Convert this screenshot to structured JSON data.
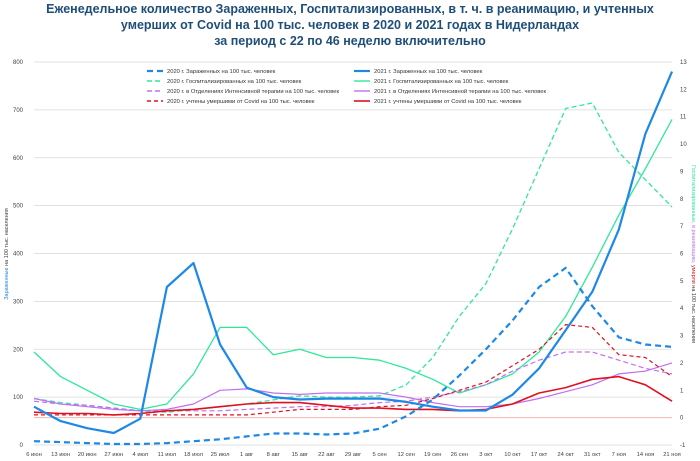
{
  "title_lines": [
    "Еженедельное количество Зараженных, Госпитализированных, в т. ч. в реанимацию, и учтенных",
    "умерших от Covid на 100 тыс. человек в 2020 и 2021 годах в Нидерландах",
    "за период с 22 по 46 неделю включительно"
  ],
  "colors": {
    "title": "#1f4e79",
    "blue": "#1e88e5",
    "green": "#2ee89a",
    "purple": "#c070ee",
    "red": "#e01020",
    "grid": "#d9d9d9",
    "axis_text": "#404040",
    "zero_line": "#f4b6b0"
  },
  "chart_data": {
    "type": "line",
    "title": "Еженедельное количество Зараженных, Госпитализированных, в т. ч. в реанимацию, и учтенных умерших от Covid на 100 тыс. человек в 2020 и 2021 годах в Нидерландах за период с 22 по 46 неделю включительно",
    "categories": [
      "6 июн",
      "13 июн",
      "20 июн",
      "27 июн",
      "4 июл",
      "11 июл",
      "18 июл",
      "25 июл",
      "1 авг",
      "8 авг",
      "15 авг",
      "22 авг",
      "29 авг",
      "5 сен",
      "12 сен",
      "19 сен",
      "26 сен",
      "3 окт",
      "10 окт",
      "17 окт",
      "24 окт",
      "31 окт",
      "7 ноя",
      "14 ноя",
      "21 ноя"
    ],
    "y_left": {
      "label_parts": [
        {
          "text": "Зараженные",
          "color": "#1e88e5"
        },
        {
          "text": " на 100 тыс. населения",
          "color": "#404040"
        }
      ],
      "range": [
        0,
        800
      ],
      "ticks": [
        "0",
        "100",
        "200",
        "300",
        "400",
        "500",
        "600",
        "700",
        "800"
      ]
    },
    "y_right": {
      "label_parts": [
        {
          "text": "Госпитализированные",
          "color": "#2ee89a"
        },
        {
          "text": ", в реанимацию, ",
          "color": "#c070ee"
        },
        {
          "text": "умерли",
          "color": "#e01020"
        },
        {
          "text": " на 100 тыс. населения",
          "color": "#404040"
        }
      ],
      "range": [
        -1,
        13
      ],
      "ticks": [
        "-1",
        "0",
        "1",
        "2",
        "3",
        "4",
        "5",
        "6",
        "7",
        "8",
        "9",
        "10",
        "11",
        "12",
        "13"
      ]
    },
    "legend_position": "top-right",
    "grid": "horizontal",
    "series": [
      {
        "name": "2020 г. Зараженных на 100 тыс. человек",
        "axis": "left",
        "color": "#1e88e5",
        "dash": "6,4",
        "width": 2.2,
        "values": [
          8,
          6,
          4,
          2,
          2,
          4,
          8,
          12,
          18,
          24,
          24,
          22,
          24,
          34,
          60,
          95,
          145,
          200,
          260,
          330,
          370,
          290,
          225,
          210,
          205
        ]
      },
      {
        "name": "2021 г. Зараженных на 100 тыс. человек",
        "axis": "left",
        "color": "#1e88e5",
        "dash": "",
        "width": 2.2,
        "values": [
          80,
          50,
          35,
          25,
          55,
          330,
          380,
          210,
          120,
          100,
          95,
          97,
          97,
          97,
          90,
          80,
          72,
          72,
          105,
          160,
          240,
          320,
          450,
          650,
          780
        ]
      },
      {
        "name": "2020 г. Госпитализированных на 100 тыс. человек",
        "axis": "right",
        "color": "#2ee89a",
        "dash": "5,3",
        "width": 1.3,
        "values": [
          0.7,
          0.55,
          0.45,
          0.35,
          0.25,
          0.2,
          0.3,
          0.4,
          0.5,
          0.65,
          0.8,
          0.75,
          0.75,
          0.8,
          1.2,
          2.2,
          3.7,
          4.9,
          6.9,
          9.1,
          11.3,
          11.5,
          9.7,
          8.7,
          7.7
        ]
      },
      {
        "name": "2021 г. Госпитализированных на 100 тыс. человек",
        "axis": "right",
        "color": "#2ee89a",
        "dash": "",
        "width": 1.3,
        "values": [
          2.4,
          1.5,
          1.0,
          0.5,
          0.3,
          0.5,
          1.6,
          3.3,
          3.3,
          2.3,
          2.5,
          2.2,
          2.2,
          2.1,
          1.8,
          1.4,
          0.9,
          1.2,
          1.6,
          2.4,
          3.7,
          5.5,
          7.4,
          9.1,
          10.9
        ]
      },
      {
        "name": "2020 г. в Отделениях Интенсивной терапии на 100 тыс. человек",
        "axis": "right",
        "color": "#c070ee",
        "dash": "5,3",
        "width": 1.2,
        "values": [
          0.6,
          0.5,
          0.45,
          0.35,
          0.25,
          0.25,
          0.25,
          0.25,
          0.3,
          0.35,
          0.4,
          0.4,
          0.45,
          0.55,
          0.6,
          0.75,
          0.95,
          1.2,
          1.7,
          2.1,
          2.4,
          2.4,
          2.1,
          1.8,
          1.6
        ]
      },
      {
        "name": "2021 г. в Отделениях Интенсивной терапии на 100 тыс. человек",
        "axis": "right",
        "color": "#c070ee",
        "dash": "",
        "width": 1.2,
        "values": [
          0.7,
          0.5,
          0.4,
          0.3,
          0.25,
          0.3,
          0.5,
          1.0,
          1.05,
          0.9,
          0.85,
          0.9,
          0.9,
          0.9,
          0.75,
          0.55,
          0.4,
          0.4,
          0.5,
          0.7,
          0.95,
          1.2,
          1.6,
          1.7,
          2.0
        ]
      },
      {
        "name": "2020 г. учтены умершими от Covid на 100 тыс. человек",
        "axis": "right",
        "color": "#e01020",
        "dash": "4,3",
        "width": 1.2,
        "values": [
          0.1,
          0.1,
          0.1,
          0.1,
          0.1,
          0.1,
          0.1,
          0.1,
          0.1,
          0.2,
          0.3,
          0.3,
          0.3,
          0.4,
          0.45,
          0.7,
          1.0,
          1.3,
          1.9,
          2.5,
          3.4,
          3.3,
          2.3,
          2.2,
          1.5
        ]
      },
      {
        "name": "2021 г. учтены умершими от Covid на 100 тыс. человек",
        "axis": "right",
        "color": "#e01020",
        "dash": "",
        "width": 1.6,
        "values": [
          0.2,
          0.15,
          0.15,
          0.1,
          0.15,
          0.25,
          0.3,
          0.4,
          0.5,
          0.55,
          0.55,
          0.45,
          0.35,
          0.35,
          0.3,
          0.3,
          0.25,
          0.3,
          0.5,
          0.9,
          1.1,
          1.4,
          1.5,
          1.2,
          0.6
        ]
      }
    ]
  }
}
